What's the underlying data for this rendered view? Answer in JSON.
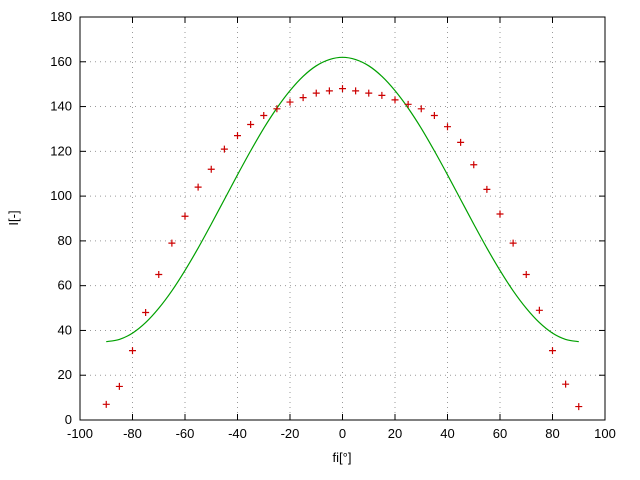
{
  "chart_data": {
    "type": "scatter",
    "title": "",
    "xlabel": "fi[°]",
    "ylabel": "I[-]",
    "xlim": [
      -100,
      100
    ],
    "ylim": [
      0,
      180
    ],
    "xticks": [
      -100,
      -80,
      -60,
      -40,
      -20,
      0,
      20,
      40,
      60,
      80,
      100
    ],
    "yticks": [
      0,
      20,
      40,
      60,
      80,
      100,
      120,
      140,
      160,
      180
    ],
    "grid": "dotted",
    "legend": "off",
    "colors": {
      "measured_points": "#cc0000",
      "model_curve": "#00a000",
      "grid": "#9a9a9a",
      "border": "#000000"
    },
    "series": [
      {
        "name": "measured",
        "type": "scatter",
        "marker": "plus",
        "color": "#cc0000",
        "x": [
          -90,
          -85,
          -80,
          -75,
          -70,
          -65,
          -60,
          -55,
          -50,
          -45,
          -40,
          -35,
          -30,
          -25,
          -20,
          -15,
          -10,
          -5,
          0,
          5,
          10,
          15,
          20,
          25,
          30,
          35,
          40,
          45,
          50,
          55,
          60,
          65,
          70,
          75,
          80,
          85,
          90
        ],
        "y": [
          7,
          15,
          31,
          48,
          65,
          79,
          91,
          104,
          112,
          121,
          127,
          132,
          136,
          139,
          142,
          144,
          146,
          147,
          148,
          147,
          146,
          145,
          143,
          141,
          139,
          136,
          131,
          124,
          114,
          103,
          92,
          79,
          65,
          49,
          31,
          16,
          6
        ]
      },
      {
        "name": "model",
        "type": "line",
        "color": "#00a000",
        "x": [
          -90,
          -85,
          -80,
          -75,
          -70,
          -65,
          -60,
          -55,
          -50,
          -45,
          -40,
          -35,
          -30,
          -25,
          -20,
          -15,
          -10,
          -5,
          0,
          5,
          10,
          15,
          20,
          25,
          30,
          35,
          40,
          45,
          50,
          55,
          60,
          65,
          70,
          75,
          80,
          85,
          90
        ],
        "y": [
          35,
          36,
          38.8,
          43.5,
          49.9,
          57.7,
          66.8,
          76.8,
          87.5,
          98.5,
          109.5,
          120.2,
          130.3,
          139.3,
          147.1,
          153.5,
          158.2,
          161,
          162,
          161,
          158.2,
          153.5,
          147.1,
          139.3,
          130.3,
          120.2,
          109.5,
          98.5,
          87.5,
          76.8,
          66.8,
          57.7,
          49.9,
          43.5,
          38.8,
          36,
          35
        ]
      }
    ]
  }
}
